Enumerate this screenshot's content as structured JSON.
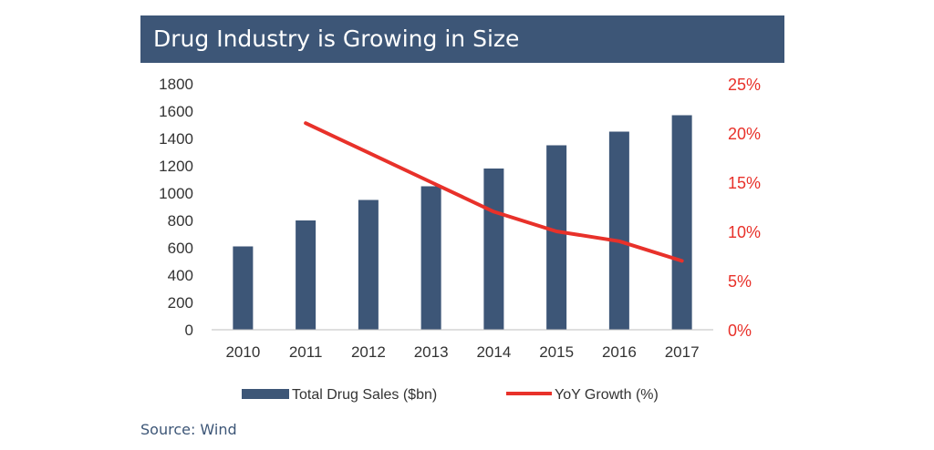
{
  "title": "Drug Industry is Growing in Size",
  "source": "Source: Wind",
  "colors": {
    "bar": "#3d5677",
    "line": "#e8312a",
    "title_bg": "#3d5677",
    "axis_text": "#333333"
  },
  "chart_data": {
    "type": "bar",
    "categories": [
      "2010",
      "2011",
      "2012",
      "2013",
      "2014",
      "2015",
      "2016",
      "2017"
    ],
    "series": [
      {
        "name": "Total Drug Sales ($bn)",
        "type": "bar",
        "axis": "left",
        "values": [
          610,
          800,
          950,
          1050,
          1180,
          1350,
          1450,
          1570
        ]
      },
      {
        "name": "YoY Growth (%)",
        "type": "line",
        "axis": "right",
        "values": [
          null,
          21,
          18,
          15,
          12,
          10,
          9,
          7
        ]
      }
    ],
    "y_left": {
      "min": 0,
      "max": 1800,
      "ticks": [
        "0",
        "200",
        "400",
        "600",
        "800",
        "1000",
        "1200",
        "1400",
        "1600",
        "1800"
      ]
    },
    "y_right": {
      "min": 0,
      "max": 25,
      "ticks": [
        "0%",
        "5%",
        "10%",
        "15%",
        "20%",
        "25%"
      ]
    },
    "grid": false,
    "legend": "bottom"
  }
}
